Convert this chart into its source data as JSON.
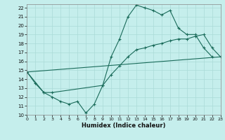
{
  "xlabel": "Humidex (Indice chaleur)",
  "xlim": [
    0,
    23
  ],
  "ylim": [
    10,
    22.4
  ],
  "xticks": [
    0,
    1,
    2,
    3,
    4,
    5,
    6,
    7,
    8,
    9,
    10,
    11,
    12,
    13,
    14,
    15,
    16,
    17,
    18,
    19,
    20,
    21,
    22,
    23
  ],
  "yticks": [
    10,
    11,
    12,
    13,
    14,
    15,
    16,
    17,
    18,
    19,
    20,
    21,
    22
  ],
  "bg_color": "#c5eeec",
  "grid_color": "#aadad7",
  "line_color": "#1a6b5a",
  "line1_x": [
    0,
    1,
    2,
    3,
    4,
    5,
    6,
    7,
    8,
    9,
    10,
    11,
    12,
    13,
    14,
    15,
    16,
    17,
    18,
    19,
    20,
    21,
    22
  ],
  "line1_y": [
    14.8,
    13.5,
    12.5,
    12.0,
    11.5,
    11.2,
    11.5,
    10.2,
    11.2,
    13.3,
    16.5,
    18.5,
    21.0,
    22.3,
    22.0,
    21.7,
    21.2,
    21.7,
    19.7,
    19.0,
    19.0,
    17.5,
    16.5
  ],
  "line2_x": [
    0,
    2,
    3,
    9,
    10,
    11,
    12,
    13,
    14,
    15,
    16,
    17,
    18,
    19,
    20,
    21,
    22,
    23
  ],
  "line2_y": [
    14.8,
    12.5,
    12.5,
    13.3,
    14.5,
    15.5,
    16.5,
    17.3,
    17.5,
    17.8,
    18.0,
    18.3,
    18.5,
    18.5,
    18.8,
    19.0,
    17.5,
    16.5
  ],
  "line3_x": [
    0,
    23
  ],
  "line3_y": [
    14.8,
    16.5
  ]
}
